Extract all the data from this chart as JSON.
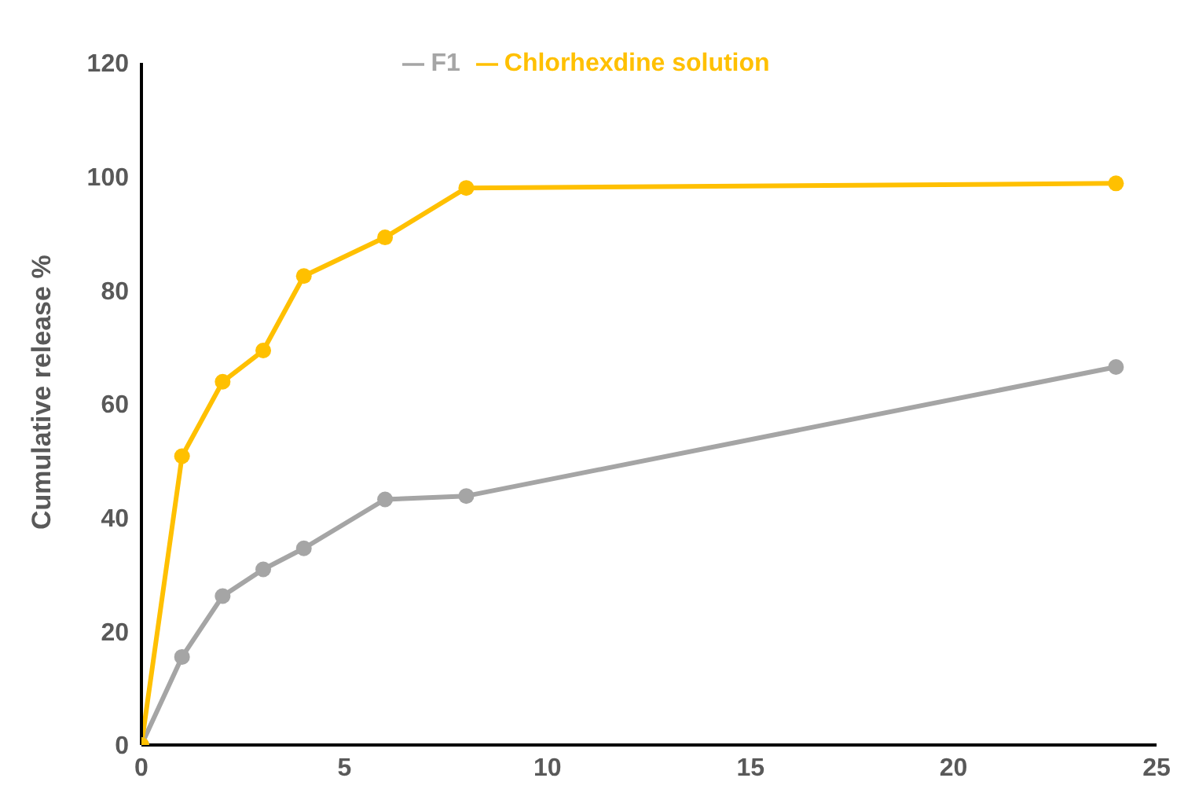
{
  "chart_data": {
    "type": "line",
    "ylabel": "Cumulative release %",
    "x": [
      0,
      1,
      2,
      3,
      4,
      6,
      8,
      24
    ],
    "series": [
      {
        "name": "F1",
        "color": "#a5a5a5",
        "values": [
          0,
          15.5,
          26.2,
          30.9,
          34.6,
          43.2,
          43.8,
          66.5
        ]
      },
      {
        "name": "Chlorhexdine solution",
        "color": "#ffc000",
        "values": [
          0,
          50.8,
          63.9,
          69.4,
          82.5,
          89.3,
          98,
          98.8
        ]
      }
    ],
    "xlim": [
      0,
      25
    ],
    "xticks": [
      0,
      5,
      10,
      15,
      20,
      25
    ],
    "ylim": [
      0,
      120
    ],
    "yticks": [
      0,
      20,
      40,
      60,
      80,
      100,
      120
    ],
    "grid": false,
    "legend": "top",
    "marker": "circle",
    "line_style": "solid"
  }
}
